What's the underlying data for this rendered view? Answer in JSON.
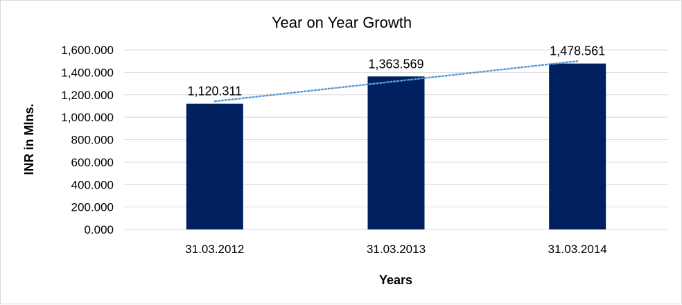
{
  "chart_data": {
    "type": "bar",
    "title": "Year on Year Growth",
    "xlabel": "Years",
    "ylabel": "INR in Mlns.",
    "categories": [
      "31.03.2012",
      "31.03.2013",
      "31.03.2014"
    ],
    "values": [
      1120.311,
      1363.569,
      1478.561
    ],
    "data_labels": [
      "1,120.311",
      "1,363.569",
      "1,478.561"
    ],
    "ylim": [
      0,
      1600
    ],
    "yticks": [
      0,
      200,
      400,
      600,
      800,
      1000,
      1200,
      1400,
      1600
    ],
    "ytick_labels": [
      "0.000",
      "200.000",
      "400.000",
      "600.000",
      "800.000",
      "1,000.000",
      "1,200.000",
      "1,400.000",
      "1,600.000"
    ],
    "grid": true,
    "legend": "none",
    "trendline": {
      "type": "linear",
      "style": "dotted"
    },
    "colors": {
      "bar": "#002060",
      "trendline": "#5b9bd5",
      "grid": "#d9d9d9"
    }
  }
}
